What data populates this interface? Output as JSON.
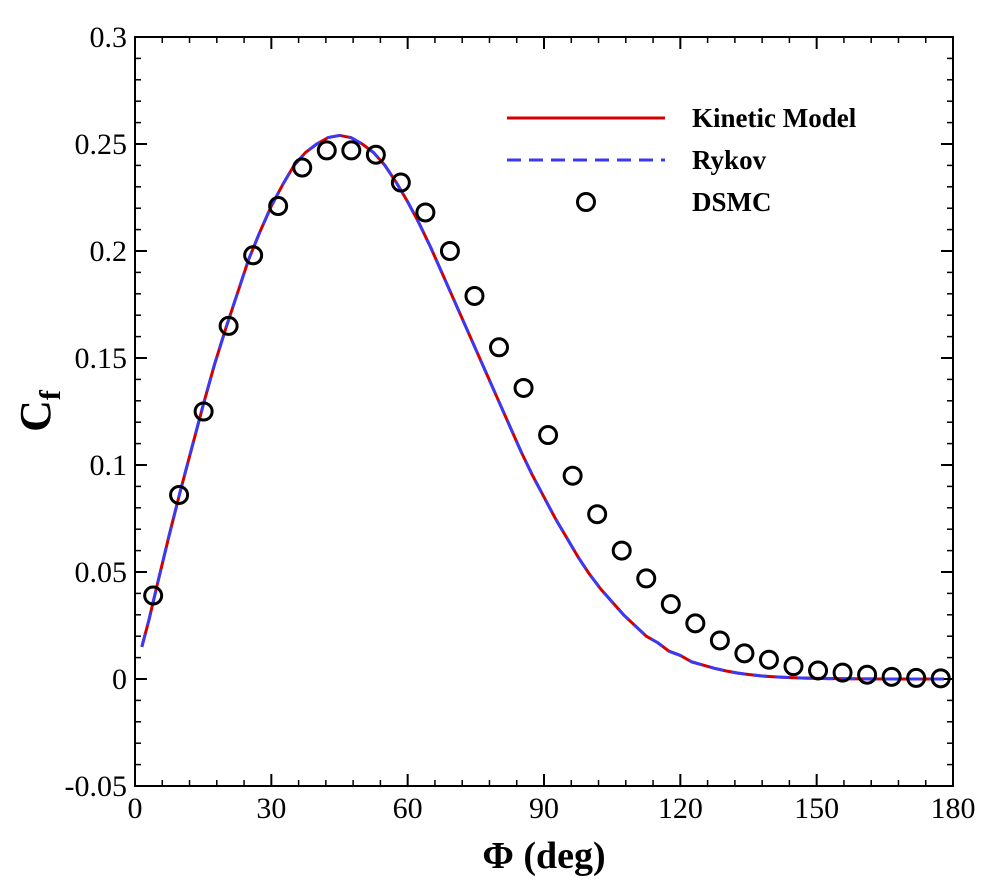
{
  "chart_data": {
    "type": "line",
    "xlabel": "Φ (deg)",
    "ylabel_main": "C",
    "ylabel_sub": "f",
    "xlim": [
      0,
      180
    ],
    "ylim": [
      -0.05,
      0.3
    ],
    "x_ticks": [
      0,
      30,
      60,
      90,
      120,
      150,
      180
    ],
    "x_tick_labels": [
      "0",
      "30",
      "60",
      "90",
      "120",
      "150",
      "180"
    ],
    "x_minor_step": 6,
    "y_ticks": [
      -0.05,
      0,
      0.05,
      0.1,
      0.15,
      0.2,
      0.25,
      0.3
    ],
    "y_tick_labels": [
      "-0.05",
      "0",
      "0.05",
      "0.1",
      "0.15",
      "0.2",
      "0.25",
      "0.3"
    ],
    "y_minor_step": 0.01,
    "grid": false,
    "legend_position": "top-right",
    "series": [
      {
        "name": "Kinetic Model",
        "style": "solid",
        "color": "#d40000",
        "x": [
          1.5,
          3,
          5,
          7.5,
          10,
          12.5,
          15,
          17.5,
          20,
          22.5,
          25,
          27.5,
          30,
          32.5,
          35,
          37.5,
          40,
          42.5,
          45,
          47.5,
          50,
          52.5,
          55,
          57.5,
          60,
          62.5,
          65,
          67.5,
          70,
          72.5,
          75,
          77.5,
          80,
          82.5,
          85,
          87.5,
          90,
          92.5,
          95,
          97.5,
          100,
          102.5,
          105,
          107.5,
          110,
          112.5,
          115,
          117.5,
          120,
          122.5,
          125,
          127.5,
          130,
          132.5,
          135,
          137.5,
          140,
          142.5,
          145,
          147.5,
          150,
          152.5,
          155,
          157.5,
          160,
          162.5,
          165,
          167.5,
          170,
          172.5,
          175,
          178
        ],
        "y": [
          0.015,
          0.027,
          0.045,
          0.067,
          0.088,
          0.108,
          0.128,
          0.147,
          0.164,
          0.18,
          0.196,
          0.209,
          0.221,
          0.231,
          0.24,
          0.246,
          0.25,
          0.253,
          0.254,
          0.253,
          0.25,
          0.246,
          0.24,
          0.232,
          0.223,
          0.213,
          0.202,
          0.19,
          0.178,
          0.166,
          0.154,
          0.142,
          0.13,
          0.118,
          0.106,
          0.095,
          0.085,
          0.075,
          0.066,
          0.057,
          0.049,
          0.042,
          0.036,
          0.03,
          0.025,
          0.02,
          0.017,
          0.013,
          0.011,
          0.008,
          0.0065,
          0.005,
          0.0038,
          0.0028,
          0.0021,
          0.0015,
          0.0011,
          0.0008,
          0.0006,
          0.0004,
          0.0003,
          0.0002,
          0.00015,
          0.0001,
          7e-05,
          5e-05,
          3e-05,
          2e-05,
          1e-05,
          1e-05,
          1e-05,
          0
        ]
      },
      {
        "name": "Rykov",
        "style": "dashed",
        "color": "#3a3af5",
        "x": [
          1.5,
          3,
          5,
          7.5,
          10,
          12.5,
          15,
          17.5,
          20,
          22.5,
          25,
          27.5,
          30,
          32.5,
          35,
          37.5,
          40,
          42.5,
          45,
          47.5,
          50,
          52.5,
          55,
          57.5,
          60,
          62.5,
          65,
          67.5,
          70,
          72.5,
          75,
          77.5,
          80,
          82.5,
          85,
          87.5,
          90,
          92.5,
          95,
          97.5,
          100,
          102.5,
          105,
          107.5,
          110,
          112.5,
          115,
          117.5,
          120,
          122.5,
          125,
          127.5,
          130,
          132.5,
          135,
          137.5,
          140,
          142.5,
          145,
          147.5,
          150,
          152.5,
          155,
          157.5,
          160,
          162.5,
          165,
          167.5,
          170,
          172.5,
          175,
          178
        ],
        "y": [
          0.015,
          0.027,
          0.045,
          0.067,
          0.088,
          0.108,
          0.128,
          0.147,
          0.164,
          0.18,
          0.196,
          0.209,
          0.221,
          0.231,
          0.24,
          0.246,
          0.25,
          0.253,
          0.254,
          0.253,
          0.25,
          0.246,
          0.24,
          0.232,
          0.223,
          0.213,
          0.202,
          0.19,
          0.178,
          0.166,
          0.154,
          0.142,
          0.13,
          0.118,
          0.106,
          0.095,
          0.085,
          0.075,
          0.066,
          0.057,
          0.049,
          0.042,
          0.036,
          0.03,
          0.025,
          0.02,
          0.017,
          0.013,
          0.011,
          0.008,
          0.0065,
          0.005,
          0.0038,
          0.0028,
          0.0021,
          0.0015,
          0.0011,
          0.0008,
          0.0006,
          0.0004,
          0.0003,
          0.0002,
          0.00015,
          0.0001,
          7e-05,
          5e-05,
          3e-05,
          2e-05,
          1e-05,
          1e-05,
          1e-05,
          0
        ]
      },
      {
        "name": "DSMC",
        "style": "markers",
        "marker": "open-circle",
        "color": "#000000",
        "x": [
          4,
          9.7,
          15.1,
          20.6,
          26,
          31.5,
          36.8,
          42.2,
          47.6,
          53,
          58.5,
          63.9,
          69.3,
          74.7,
          80.1,
          85.5,
          90.9,
          96.3,
          101.7,
          107.1,
          112.5,
          117.9,
          123.3,
          128.7,
          134.1,
          139.5,
          144.9,
          150.3,
          155.7,
          161.1,
          166.5,
          171.9,
          177.3
        ],
        "y": [
          0.039,
          0.086,
          0.125,
          0.165,
          0.198,
          0.221,
          0.239,
          0.247,
          0.247,
          0.245,
          0.232,
          0.218,
          0.2,
          0.179,
          0.155,
          0.136,
          0.114,
          0.095,
          0.077,
          0.06,
          0.047,
          0.035,
          0.026,
          0.018,
          0.012,
          0.009,
          0.006,
          0.004,
          0.003,
          0.002,
          0.001,
          0.0005,
          0.0003
        ]
      }
    ]
  }
}
